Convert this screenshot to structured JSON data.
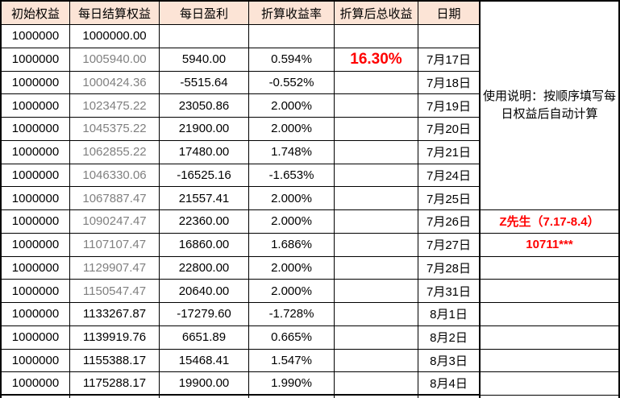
{
  "columns": [
    "初始权益",
    "每日结算权益",
    "每日盈利",
    "折算收益率",
    "折算后总收益",
    "日期"
  ],
  "rows": [
    {
      "initial": "1000000",
      "settle": "1000000.00",
      "profit": "",
      "rate": "",
      "total": "",
      "date": "",
      "settle_grey": false,
      "note": "",
      "note_line": false
    },
    {
      "initial": "1000000",
      "settle": "1005940.00",
      "profit": "5940.00",
      "rate": "0.594%",
      "total": "16.30%",
      "date": "7月17日",
      "settle_grey": true,
      "note": "",
      "note_line": false
    },
    {
      "initial": "1000000",
      "settle": "1000424.36",
      "profit": "-5515.64",
      "rate": "-0.552%",
      "total": "",
      "date": "7月18日",
      "settle_grey": true,
      "note": "",
      "note_line": false
    },
    {
      "initial": "1000000",
      "settle": "1023475.22",
      "profit": "23050.86",
      "rate": "2.000%",
      "total": "",
      "date": "7月19日",
      "settle_grey": true,
      "note": "",
      "note_line": false
    },
    {
      "initial": "1000000",
      "settle": "1045375.22",
      "profit": "21900.00",
      "rate": "2.000%",
      "total": "",
      "date": "7月20日",
      "settle_grey": true,
      "note": "",
      "note_line": false
    },
    {
      "initial": "1000000",
      "settle": "1062855.22",
      "profit": "17480.00",
      "rate": "1.748%",
      "total": "",
      "date": "7月21日",
      "settle_grey": true,
      "note": "",
      "note_line": false
    },
    {
      "initial": "1000000",
      "settle": "1046330.06",
      "profit": "-16525.16",
      "rate": "-1.653%",
      "total": "",
      "date": "7月24日",
      "settle_grey": true,
      "note": "",
      "note_line": false
    },
    {
      "initial": "1000000",
      "settle": "1067887.47",
      "profit": "21557.41",
      "rate": "2.000%",
      "total": "",
      "date": "7月25日",
      "settle_grey": true,
      "note": "",
      "note_line": true
    },
    {
      "initial": "1000000",
      "settle": "1090247.47",
      "profit": "22360.00",
      "rate": "2.000%",
      "total": "",
      "date": "7月26日",
      "settle_grey": true,
      "note": "Z先生（7.17-8.4）",
      "note_line": true
    },
    {
      "initial": "1000000",
      "settle": "1107107.47",
      "profit": "16860.00",
      "rate": "1.686%",
      "total": "",
      "date": "7月27日",
      "settle_grey": true,
      "note": "10711***",
      "note_line": true
    },
    {
      "initial": "1000000",
      "settle": "1129907.47",
      "profit": "22800.00",
      "rate": "2.000%",
      "total": "",
      "date": "7月28日",
      "settle_grey": true,
      "note": "",
      "note_line": true
    },
    {
      "initial": "1000000",
      "settle": "1150547.47",
      "profit": "20640.00",
      "rate": "2.000%",
      "total": "",
      "date": "7月31日",
      "settle_grey": true,
      "note": "",
      "note_line": true
    },
    {
      "initial": "1000000",
      "settle": "1133267.87",
      "profit": "-17279.60",
      "rate": "-1.728%",
      "total": "",
      "date": "8月1日",
      "settle_grey": false,
      "note": "",
      "note_line": true
    },
    {
      "initial": "1000000",
      "settle": "1139919.76",
      "profit": "6651.89",
      "rate": "0.665%",
      "total": "",
      "date": "8月2日",
      "settle_grey": false,
      "note": "",
      "note_line": true
    },
    {
      "initial": "1000000",
      "settle": "1155388.17",
      "profit": "15468.41",
      "rate": "1.547%",
      "total": "",
      "date": "8月3日",
      "settle_grey": false,
      "note": "",
      "note_line": true
    },
    {
      "initial": "1000000",
      "settle": "1175288.17",
      "profit": "19900.00",
      "rate": "1.990%",
      "total": "",
      "date": "8月4日",
      "settle_grey": false,
      "note": "",
      "note_line": true
    }
  ],
  "notes": {
    "instructions": "使用说明：按顺序填写每日权益后自动计算",
    "annotation_line1": "Z先生（7.17-8.4）",
    "annotation_line2": "10711***"
  },
  "colors": {
    "header_bg": "#FCE4D6",
    "highlight_red": "#FF0000",
    "grey_text": "#808080",
    "border": "#000000"
  }
}
